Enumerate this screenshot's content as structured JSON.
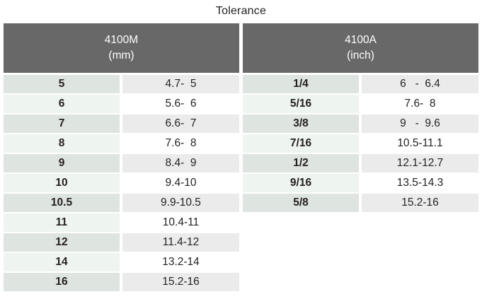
{
  "title": "Tolerance",
  "colors": {
    "header_bg": "#686868",
    "header_text": "#ffffff",
    "key_row_shade_a": "#dee4e0",
    "key_row_shade_b": "#eef4f0",
    "value_row_shade_a": "#ebebeb",
    "value_row_shade_b": "#ffffff",
    "text": "#231f20"
  },
  "sections": [
    {
      "name": "4100M",
      "unit": "(mm)",
      "rows": [
        {
          "size": "5",
          "range": "4.7-  5"
        },
        {
          "size": "6",
          "range": "5.6-  6"
        },
        {
          "size": "7",
          "range": "6.6-  7"
        },
        {
          "size": "8",
          "range": "7.6-  8"
        },
        {
          "size": "9",
          "range": "8.4-  9"
        },
        {
          "size": "10",
          "range": "9.4-10"
        },
        {
          "size": "10.5",
          "range": "9.9-10.5"
        },
        {
          "size": "11",
          "range": "10.4-11"
        },
        {
          "size": "12",
          "range": "11.4-12"
        },
        {
          "size": "14",
          "range": "13.2-14"
        },
        {
          "size": "16",
          "range": "15.2-16"
        }
      ]
    },
    {
      "name": "4100A",
      "unit": "(inch)",
      "rows": [
        {
          "size": "1/4",
          "range": "6   -  6.4"
        },
        {
          "size": "5/16",
          "range": "7.6-  8"
        },
        {
          "size": "3/8",
          "range": "9   -  9.6"
        },
        {
          "size": "7/16",
          "range": "10.5-11.1"
        },
        {
          "size": "1/2",
          "range": "12.1-12.7"
        },
        {
          "size": "9/16",
          "range": "13.5-14.3"
        },
        {
          "size": "5/8",
          "range": "15.2-16"
        }
      ]
    }
  ]
}
